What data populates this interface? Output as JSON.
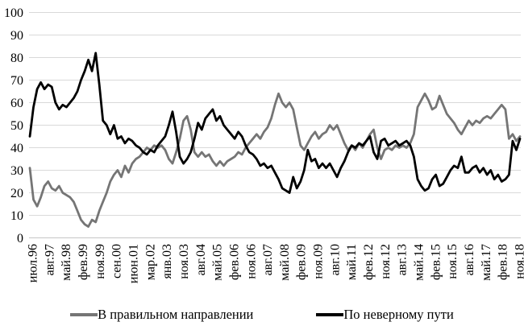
{
  "page": {
    "background": "#ffffff"
  },
  "chart_data": {
    "type": "line",
    "title": "",
    "xlabel": "",
    "ylabel": "",
    "ylim": [
      0,
      100
    ],
    "y_ticks": [
      0,
      10,
      20,
      30,
      40,
      50,
      60,
      70,
      80,
      90,
      100
    ],
    "grid": true,
    "grid_color": "#d9d9d9",
    "axis_color": "#c6c6c6",
    "legend_position": "bottom",
    "x_labels": [
      "июл.96",
      "авг.97",
      "май.98",
      "фев.99",
      "ноя.99",
      "сен.00",
      "июн.01",
      "мар.02",
      "янв.03",
      "ноя.03",
      "авг.04",
      "май.05",
      "фев.06",
      "ноя.06",
      "авг.07",
      "май.08",
      "фев.09",
      "ноя.09",
      "авг.10",
      "май.11",
      "фев.12",
      "ноя.12",
      "авг.13",
      "май.14",
      "фев.15",
      "ноя.15",
      "авг.16",
      "май.17",
      "фев.18",
      "ноя.18"
    ],
    "series": [
      {
        "name": "В правильном направлении",
        "color": "#757575",
        "stroke_width": 2.8,
        "values": [
          31,
          17,
          14,
          18,
          23,
          25,
          22,
          21,
          23,
          20,
          19,
          18,
          16,
          12,
          8,
          6,
          5,
          8,
          7,
          12,
          16,
          20,
          25,
          28,
          30,
          27,
          32,
          29,
          33,
          35,
          36,
          38,
          40,
          39,
          41,
          40,
          41,
          39,
          35,
          33,
          38,
          44,
          52,
          54,
          48,
          38,
          36,
          38,
          36,
          37,
          34,
          32,
          34,
          32,
          34,
          35,
          36,
          38,
          37,
          40,
          42,
          44,
          46,
          44,
          47,
          49,
          53,
          59,
          64,
          60,
          58,
          60,
          57,
          49,
          41,
          39,
          42,
          45,
          47,
          44,
          46,
          47,
          50,
          48,
          50,
          46,
          42,
          39,
          41,
          39,
          42,
          40,
          43,
          46,
          48,
          40,
          35,
          39,
          40,
          39,
          41,
          40,
          41,
          40,
          42,
          46,
          58,
          61,
          64,
          61,
          57,
          58,
          63,
          59,
          55,
          53,
          51,
          48,
          46,
          49,
          52,
          50,
          52,
          51,
          53,
          54,
          53,
          55,
          57,
          59,
          57,
          44,
          46,
          43,
          45
        ]
      },
      {
        "name": "По неверному пути",
        "color": "#000000",
        "stroke_width": 2.8,
        "values": [
          45,
          58,
          66,
          69,
          66,
          68,
          67,
          60,
          57,
          59,
          58,
          60,
          62,
          65,
          70,
          74,
          79,
          74,
          82,
          68,
          52,
          50,
          46,
          50,
          44,
          45,
          42,
          44,
          43,
          41,
          40,
          38,
          37,
          39,
          38,
          41,
          43,
          45,
          50,
          56,
          47,
          36,
          33,
          35,
          38,
          44,
          51,
          48,
          53,
          55,
          57,
          52,
          54,
          50,
          48,
          46,
          44,
          47,
          45,
          41,
          38,
          37,
          35,
          32,
          33,
          31,
          32,
          29,
          26,
          22,
          21,
          20,
          27,
          22,
          25,
          30,
          39,
          34,
          35,
          31,
          33,
          31,
          33,
          30,
          27,
          31,
          34,
          38,
          41,
          40,
          42,
          41,
          43,
          45,
          38,
          35,
          43,
          44,
          41,
          42,
          43,
          41,
          42,
          43,
          41,
          36,
          26,
          23,
          21,
          22,
          26,
          28,
          23,
          24,
          27,
          30,
          32,
          31,
          36,
          29,
          29,
          31,
          32,
          29,
          31,
          28,
          30,
          26,
          28,
          25,
          26,
          28,
          43,
          39,
          44
        ]
      }
    ]
  }
}
